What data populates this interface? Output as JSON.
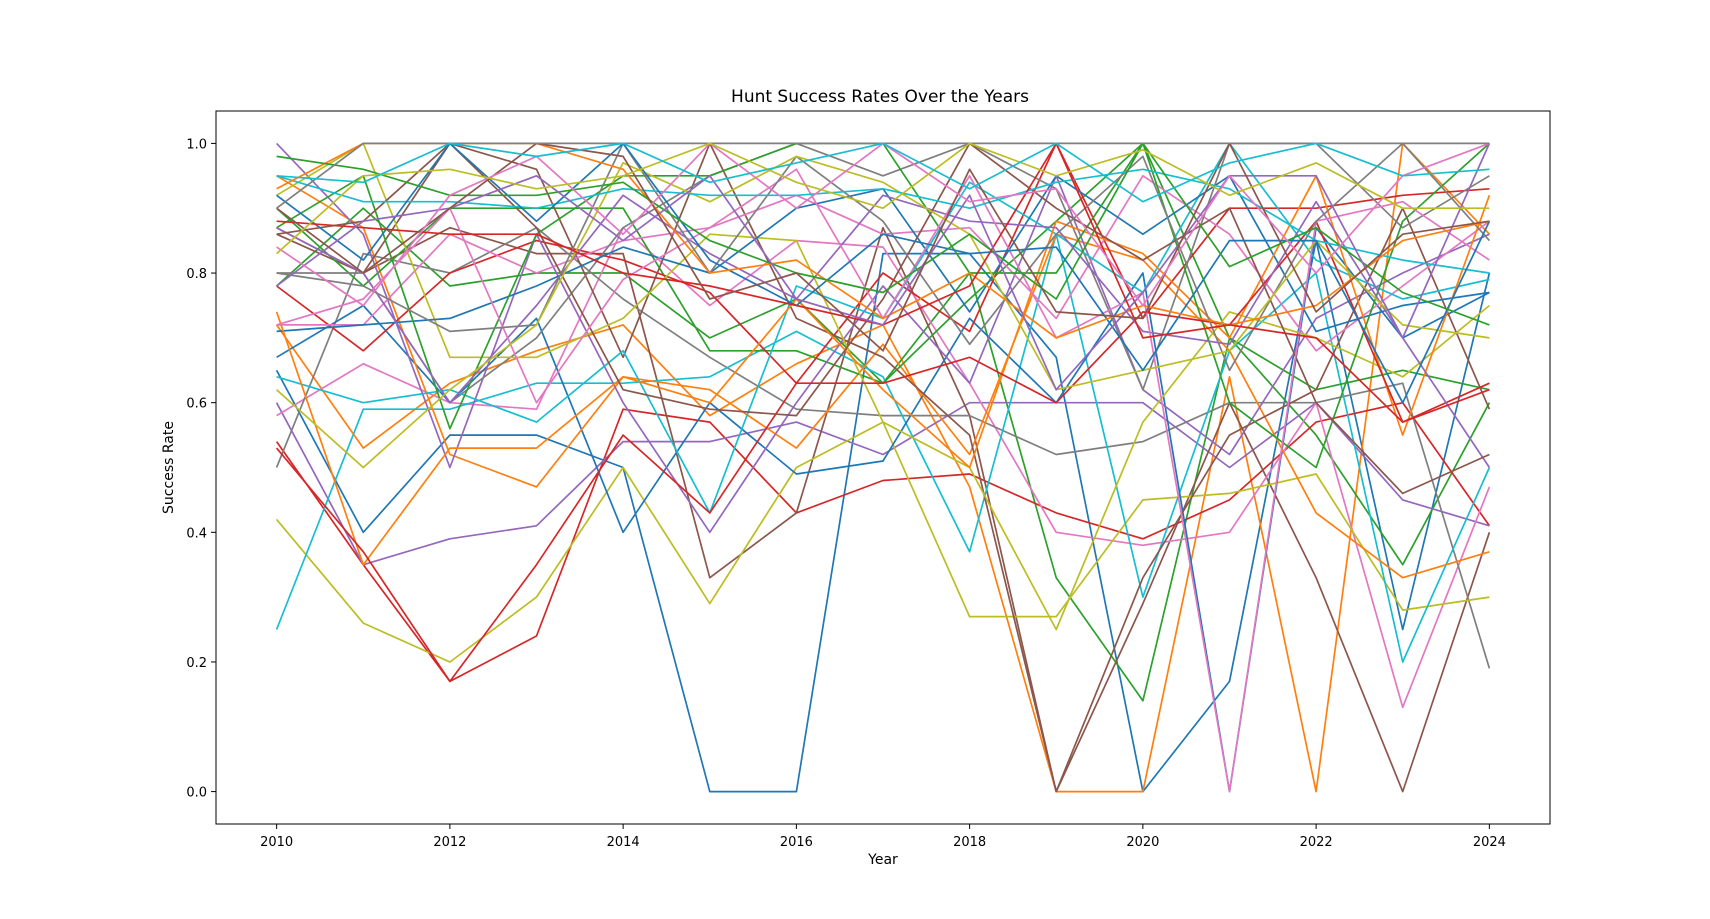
{
  "chart_data": {
    "type": "line",
    "title": "Hunt Success Rates Over the Years",
    "xlabel": "Year",
    "ylabel": "Success Rate",
    "xlim": [
      2009.3,
      2024.7
    ],
    "ylim": [
      -0.05,
      1.05
    ],
    "x_ticks": [
      2010,
      2012,
      2014,
      2016,
      2018,
      2020,
      2022,
      2024
    ],
    "y_ticks": [
      0.0,
      0.2,
      0.4,
      0.6,
      0.8,
      1.0
    ],
    "y_tick_labels": [
      "0.0",
      "0.2",
      "0.4",
      "0.6",
      "0.8",
      "1.0"
    ],
    "grid": false,
    "legend": "none",
    "palette": [
      "#1f77b4",
      "#ff7f0e",
      "#2ca02c",
      "#d62728",
      "#9467bd",
      "#8c564b",
      "#e377c2",
      "#7f7f7f",
      "#bcbd22",
      "#17becf"
    ],
    "x": [
      2010,
      2011,
      2012,
      2013,
      2014,
      2015,
      2016,
      2017,
      2018,
      2019,
      2020,
      2021,
      2022,
      2023,
      2024
    ],
    "series": [
      {
        "values": [
          0.65,
          0.4,
          0.55,
          0.55,
          0.5,
          0.0,
          0.0,
          0.83,
          0.83,
          0.67,
          0.0,
          0.17,
          0.85,
          0.25,
          0.8
        ]
      },
      {
        "values": [
          0.72,
          0.53,
          0.63,
          0.68,
          0.72,
          0.58,
          0.66,
          0.72,
          0.47,
          0.0,
          0.0,
          0.64,
          0.0,
          1.0,
          0.86
        ]
      },
      {
        "values": [
          0.78,
          0.9,
          0.78,
          0.8,
          0.8,
          0.7,
          0.76,
          0.63,
          0.8,
          0.33,
          0.14,
          0.7,
          0.55,
          0.35,
          0.6
        ]
      },
      {
        "values": [
          0.54,
          0.35,
          0.17,
          0.24,
          0.59,
          0.57,
          0.43,
          0.48,
          0.49,
          0.43,
          0.39,
          0.45,
          0.57,
          0.6,
          0.41
        ]
      },
      {
        "values": [
          0.6,
          0.35,
          0.39,
          0.41,
          0.54,
          0.54,
          0.57,
          0.52,
          0.6,
          0.6,
          0.6,
          0.5,
          0.6,
          0.45,
          0.41
        ]
      },
      {
        "values": [
          0.86,
          0.8,
          0.87,
          0.83,
          0.83,
          0.33,
          0.43,
          0.87,
          0.58,
          0.0,
          0.29,
          0.6,
          0.33,
          0.0,
          0.4
        ]
      },
      {
        "values": [
          0.58,
          0.66,
          0.6,
          0.59,
          0.87,
          0.75,
          0.85,
          0.84,
          0.63,
          0.4,
          0.38,
          0.4,
          0.6,
          0.13,
          0.47
        ]
      },
      {
        "values": [
          0.5,
          0.83,
          0.8,
          0.87,
          0.76,
          0.67,
          0.59,
          0.58,
          0.58,
          0.52,
          0.54,
          0.6,
          0.6,
          0.63,
          0.19
        ]
      },
      {
        "values": [
          0.42,
          0.26,
          0.2,
          0.3,
          0.5,
          0.29,
          0.5,
          0.57,
          0.27,
          0.27,
          0.45,
          0.46,
          0.49,
          0.28,
          0.3
        ]
      },
      {
        "values": [
          0.25,
          0.59,
          0.59,
          0.63,
          0.63,
          0.64,
          0.71,
          0.64,
          0.37,
          0.86,
          0.3,
          0.68,
          0.8,
          0.2,
          0.5
        ]
      },
      {
        "values": [
          0.67,
          0.75,
          0.6,
          0.73,
          0.4,
          0.6,
          0.49,
          0.51,
          0.73,
          0.6,
          0.8,
          0.0,
          0.87,
          0.7,
          0.77
        ]
      },
      {
        "values": [
          0.95,
          0.87,
          0.52,
          0.47,
          0.64,
          0.62,
          0.53,
          0.69,
          0.52,
          0.86,
          0.82,
          0.68,
          0.43,
          0.33,
          0.37
        ]
      },
      {
        "values": [
          0.9,
          0.78,
          0.9,
          0.9,
          0.9,
          0.68,
          0.68,
          0.63,
          0.76,
          0.88,
          1.0,
          0.7,
          0.62,
          0.65,
          0.62
        ]
      },
      {
        "values": [
          0.78,
          0.68,
          0.8,
          0.85,
          0.82,
          0.77,
          0.63,
          0.8,
          0.71,
          1.0,
          0.73,
          0.9,
          0.9,
          0.92,
          0.93
        ]
      },
      {
        "values": [
          1.0,
          0.86,
          0.5,
          0.86,
          0.6,
          0.4,
          0.6,
          0.78,
          0.63,
          0.95,
          0.62,
          0.52,
          0.73,
          0.8,
          0.86
        ]
      },
      {
        "values": [
          0.87,
          0.8,
          1.0,
          0.96,
          0.67,
          1.0,
          0.73,
          0.67,
          0.55,
          0.0,
          0.33,
          0.55,
          0.62,
          0.9,
          0.59
        ]
      },
      {
        "values": [
          0.72,
          0.72,
          0.86,
          0.8,
          0.85,
          0.87,
          0.92,
          0.86,
          0.87,
          0.73,
          0.95,
          0.86,
          0.68,
          0.78,
          0.88
        ]
      },
      {
        "values": [
          0.8,
          0.8,
          0.6,
          0.7,
          0.87,
          0.95,
          1.0,
          0.95,
          1.0,
          0.93,
          0.62,
          1.0,
          1.0,
          0.87,
          0.95
        ]
      },
      {
        "values": [
          0.92,
          1.0,
          0.67,
          0.67,
          0.73,
          0.86,
          0.85,
          0.57,
          0.5,
          0.25,
          0.57,
          0.74,
          0.7,
          0.64,
          0.75
        ]
      },
      {
        "values": [
          0.64,
          0.6,
          0.62,
          0.57,
          0.68,
          0.43,
          0.78,
          0.73,
          0.94,
          0.86,
          0.77,
          1.0,
          0.82,
          0.76,
          0.79
        ]
      },
      {
        "values": [
          0.71,
          0.72,
          0.73,
          0.78,
          0.84,
          0.8,
          0.9,
          0.93,
          0.74,
          0.95,
          0.86,
          0.95,
          0.71,
          0.75,
          0.77
        ]
      },
      {
        "values": [
          0.74,
          0.35,
          0.53,
          0.53,
          0.64,
          0.6,
          0.76,
          0.62,
          0.5,
          0.88,
          0.83,
          0.7,
          0.95,
          0.55,
          0.92
        ]
      },
      {
        "values": [
          0.87,
          0.95,
          0.56,
          0.86,
          0.95,
          0.95,
          1.0,
          1.0,
          0.8,
          0.8,
          1.0,
          0.6,
          0.5,
          0.88,
          1.0
        ]
      },
      {
        "values": [
          0.53,
          0.37,
          0.17,
          0.35,
          0.55,
          0.43,
          0.63,
          0.63,
          0.67,
          0.6,
          0.74,
          0.72,
          0.88,
          0.57,
          0.63
        ]
      },
      {
        "values": [
          0.87,
          0.8,
          0.6,
          0.75,
          0.92,
          0.83,
          0.76,
          0.92,
          0.88,
          0.87,
          0.71,
          0.69,
          0.91,
          0.7,
          0.5
        ]
      },
      {
        "values": [
          0.86,
          0.88,
          1.0,
          0.87,
          0.62,
          0.59,
          0.58,
          0.76,
          1.0,
          0.9,
          0.82,
          0.9,
          0.6,
          0.46,
          0.52
        ]
      },
      {
        "values": [
          0.72,
          0.76,
          0.9,
          0.6,
          0.79,
          0.87,
          0.96,
          0.73,
          0.95,
          0.7,
          0.77,
          0.0,
          0.88,
          0.91,
          0.82
        ]
      },
      {
        "values": [
          0.8,
          0.78,
          0.71,
          0.72,
          1.0,
          0.8,
          0.98,
          0.88,
          0.69,
          0.86,
          0.98,
          0.65,
          0.88,
          1.0,
          0.85
        ]
      },
      {
        "values": [
          0.62,
          0.5,
          0.62,
          0.72,
          0.97,
          0.91,
          0.98,
          0.94,
          0.86,
          0.62,
          0.65,
          0.68,
          0.85,
          0.72,
          0.7
        ]
      },
      {
        "values": [
          0.95,
          0.91,
          0.91,
          0.9,
          0.93,
          0.92,
          0.92,
          0.93,
          0.9,
          0.94,
          0.96,
          0.93,
          0.85,
          0.82,
          0.8
        ]
      },
      {
        "values": [
          0.92,
          0.82,
          1.0,
          0.88,
          1.0,
          0.82,
          0.75,
          0.86,
          0.83,
          0.84,
          0.65,
          0.85,
          0.85,
          0.6,
          0.88
        ]
      },
      {
        "values": [
          0.93,
          1.0,
          1.0,
          1.0,
          0.96,
          0.8,
          0.82,
          0.73,
          0.8,
          0.7,
          0.75,
          0.72,
          0.75,
          0.85,
          0.88
        ]
      },
      {
        "values": [
          0.98,
          0.96,
          0.92,
          0.92,
          0.94,
          0.85,
          0.8,
          0.77,
          0.86,
          0.76,
          1.0,
          0.81,
          0.87,
          0.77,
          0.72
        ]
      },
      {
        "values": [
          0.88,
          0.87,
          0.86,
          0.86,
          0.8,
          0.78,
          0.75,
          0.72,
          0.78,
          1.0,
          0.7,
          0.72,
          0.7,
          0.57,
          0.62
        ]
      },
      {
        "values": [
          0.78,
          0.88,
          0.9,
          0.95,
          0.85,
          0.95,
          0.76,
          0.72,
          0.92,
          0.62,
          0.77,
          0.95,
          0.95,
          0.7,
          1.0
        ]
      },
      {
        "values": [
          0.9,
          0.8,
          0.9,
          1.0,
          0.98,
          0.76,
          0.8,
          0.68,
          0.96,
          0.74,
          0.73,
          1.0,
          0.74,
          0.86,
          0.88
        ]
      },
      {
        "values": [
          0.84,
          0.75,
          0.92,
          0.98,
          0.86,
          1.0,
          0.9,
          1.0,
          0.91,
          0.93,
          0.75,
          0.95,
          0.8,
          0.95,
          1.0
        ]
      },
      {
        "values": [
          0.9,
          1.0,
          1.0,
          1.0,
          1.0,
          1.0,
          1.0,
          1.0,
          1.0,
          1.0,
          1.0,
          1.0,
          1.0,
          1.0,
          1.0
        ]
      },
      {
        "values": [
          0.83,
          0.95,
          0.96,
          0.93,
          0.95,
          1.0,
          0.94,
          0.9,
          1.0,
          0.95,
          0.99,
          0.92,
          0.97,
          0.9,
          0.9
        ]
      },
      {
        "values": [
          0.95,
          0.94,
          1.0,
          0.98,
          1.0,
          0.94,
          0.97,
          1.0,
          0.93,
          1.0,
          0.91,
          0.97,
          1.0,
          0.95,
          0.96
        ]
      }
    ]
  }
}
